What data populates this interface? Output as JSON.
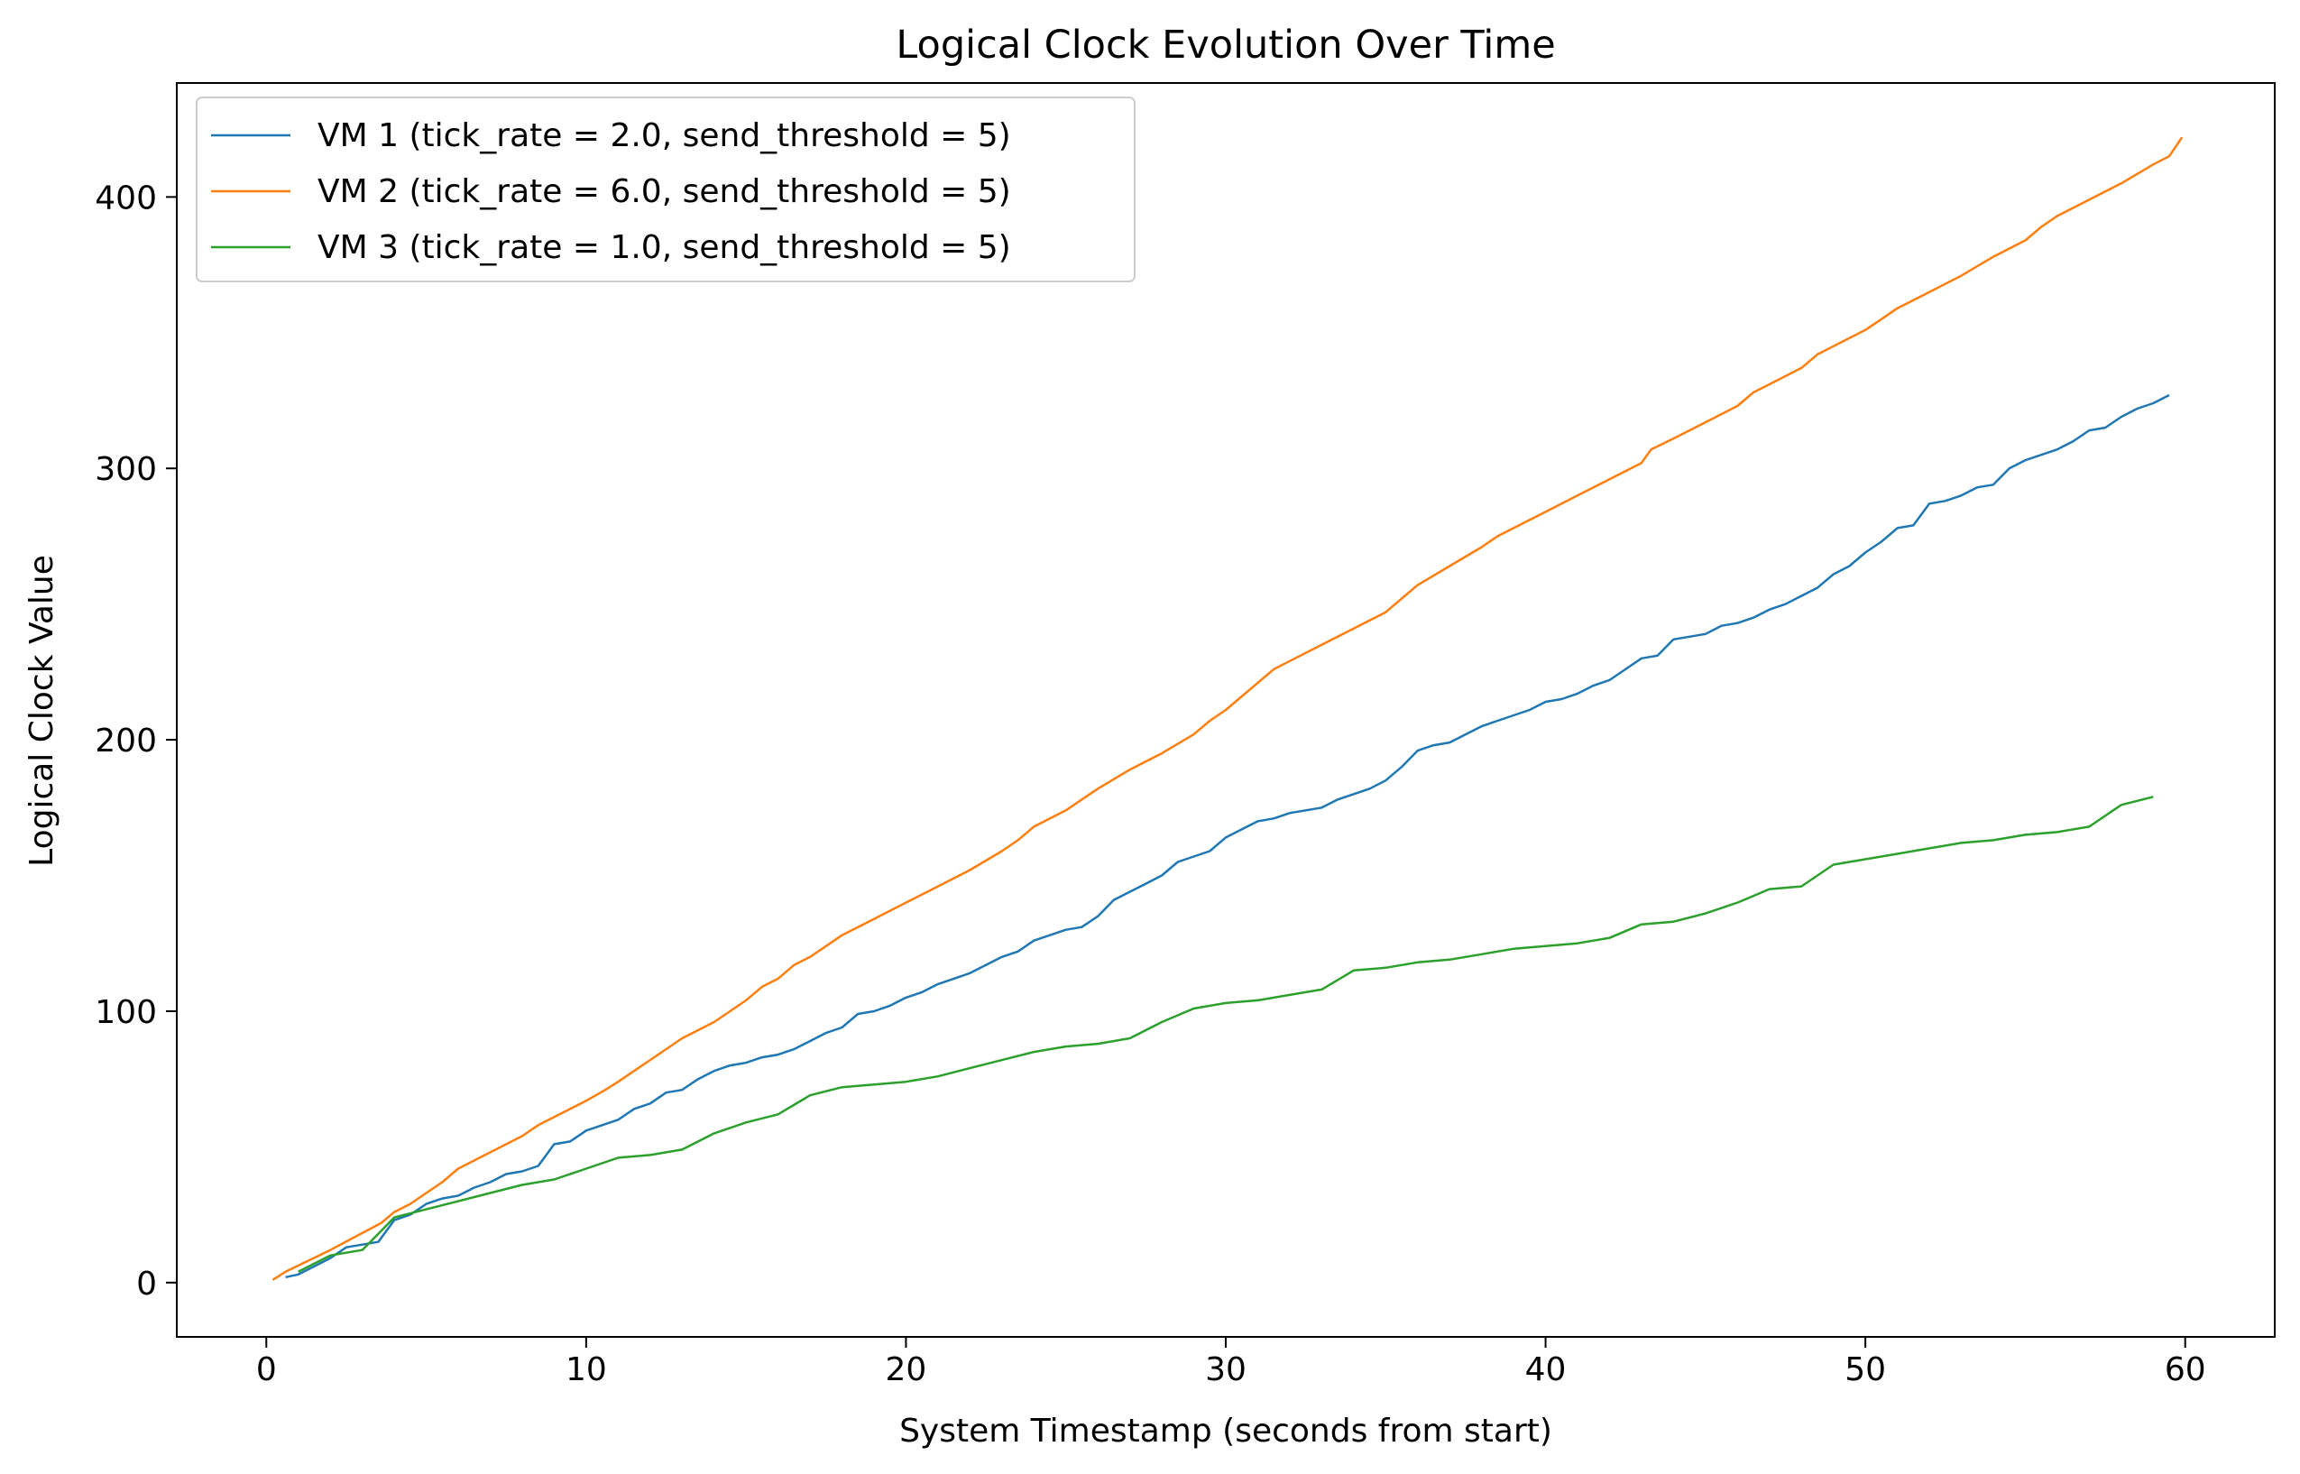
{
  "chart_data": {
    "type": "line",
    "title": "Logical Clock Evolution Over Time",
    "xlabel": "System Timestamp (seconds from start)",
    "ylabel": "Logical Clock Value",
    "xlim": [
      -2.8,
      62.8
    ],
    "ylim": [
      -20,
      442
    ],
    "xticks": [
      0,
      10,
      20,
      30,
      40,
      50,
      60
    ],
    "yticks": [
      0,
      100,
      200,
      300,
      400
    ],
    "grid": false,
    "legend_position": "top-left",
    "series": [
      {
        "name": "VM 1 (tick_rate = 2.0, send_threshold = 5)",
        "color": "#1f77b4",
        "points": [
          [
            0.6,
            2
          ],
          [
            1.0,
            3
          ],
          [
            1.5,
            6
          ],
          [
            2.0,
            9
          ],
          [
            2.5,
            13
          ],
          [
            3.0,
            14
          ],
          [
            3.5,
            15
          ],
          [
            4.0,
            23
          ],
          [
            4.5,
            25
          ],
          [
            5.0,
            29
          ],
          [
            5.5,
            31
          ],
          [
            6.0,
            32
          ],
          [
            6.5,
            35
          ],
          [
            7.0,
            37
          ],
          [
            7.5,
            40
          ],
          [
            8.0,
            41
          ],
          [
            8.5,
            43
          ],
          [
            9.0,
            51
          ],
          [
            9.5,
            52
          ],
          [
            10.0,
            56
          ],
          [
            10.5,
            58
          ],
          [
            11.0,
            60
          ],
          [
            11.5,
            64
          ],
          [
            12.0,
            66
          ],
          [
            12.5,
            70
          ],
          [
            13.0,
            71
          ],
          [
            13.5,
            75
          ],
          [
            14.0,
            78
          ],
          [
            14.5,
            80
          ],
          [
            15.0,
            81
          ],
          [
            15.5,
            83
          ],
          [
            16.0,
            84
          ],
          [
            16.5,
            86
          ],
          [
            17.0,
            89
          ],
          [
            17.5,
            92
          ],
          [
            18.0,
            94
          ],
          [
            18.5,
            99
          ],
          [
            19.0,
            100
          ],
          [
            19.5,
            102
          ],
          [
            20.0,
            105
          ],
          [
            20.5,
            107
          ],
          [
            21.0,
            110
          ],
          [
            21.5,
            112
          ],
          [
            22.0,
            114
          ],
          [
            22.5,
            117
          ],
          [
            23.0,
            120
          ],
          [
            23.5,
            122
          ],
          [
            24.0,
            126
          ],
          [
            24.5,
            128
          ],
          [
            25.0,
            130
          ],
          [
            25.5,
            131
          ],
          [
            26.0,
            135
          ],
          [
            26.5,
            141
          ],
          [
            27.0,
            144
          ],
          [
            27.5,
            147
          ],
          [
            28.0,
            150
          ],
          [
            28.5,
            155
          ],
          [
            29.0,
            157
          ],
          [
            29.5,
            159
          ],
          [
            30.0,
            164
          ],
          [
            30.5,
            167
          ],
          [
            31.0,
            170
          ],
          [
            31.5,
            171
          ],
          [
            32.0,
            173
          ],
          [
            32.5,
            174
          ],
          [
            33.0,
            175
          ],
          [
            33.5,
            178
          ],
          [
            34.0,
            180
          ],
          [
            34.5,
            182
          ],
          [
            35.0,
            185
          ],
          [
            35.5,
            190
          ],
          [
            36.0,
            196
          ],
          [
            36.5,
            198
          ],
          [
            37.0,
            199
          ],
          [
            37.5,
            202
          ],
          [
            38.0,
            205
          ],
          [
            38.5,
            207
          ],
          [
            39.0,
            209
          ],
          [
            39.5,
            211
          ],
          [
            40.0,
            214
          ],
          [
            40.5,
            215
          ],
          [
            41.0,
            217
          ],
          [
            41.5,
            220
          ],
          [
            42.0,
            222
          ],
          [
            42.5,
            226
          ],
          [
            43.0,
            230
          ],
          [
            43.5,
            231
          ],
          [
            44.0,
            237
          ],
          [
            44.5,
            238
          ],
          [
            45.0,
            239
          ],
          [
            45.5,
            242
          ],
          [
            46.0,
            243
          ],
          [
            46.5,
            245
          ],
          [
            47.0,
            248
          ],
          [
            47.5,
            250
          ],
          [
            48.0,
            253
          ],
          [
            48.5,
            256
          ],
          [
            49.0,
            261
          ],
          [
            49.5,
            264
          ],
          [
            50.0,
            269
          ],
          [
            50.5,
            273
          ],
          [
            51.0,
            278
          ],
          [
            51.5,
            279
          ],
          [
            52.0,
            287
          ],
          [
            52.5,
            288
          ],
          [
            53.0,
            290
          ],
          [
            53.5,
            293
          ],
          [
            54.0,
            294
          ],
          [
            54.5,
            300
          ],
          [
            55.0,
            303
          ],
          [
            55.5,
            305
          ],
          [
            56.0,
            307
          ],
          [
            56.5,
            310
          ],
          [
            57.0,
            314
          ],
          [
            57.5,
            315
          ],
          [
            58.0,
            319
          ],
          [
            58.5,
            322
          ],
          [
            59.0,
            324
          ],
          [
            59.5,
            327
          ]
        ]
      },
      {
        "name": "VM 2 (tick_rate = 6.0, send_threshold = 5)",
        "color": "#ff7f0e",
        "points": [
          [
            0.2,
            1
          ],
          [
            0.6,
            4
          ],
          [
            2.0,
            12
          ],
          [
            3.6,
            22
          ],
          [
            4.0,
            26
          ],
          [
            4.5,
            29
          ],
          [
            5.0,
            33
          ],
          [
            5.5,
            37
          ],
          [
            6.0,
            42
          ],
          [
            7.0,
            48
          ],
          [
            8.0,
            54
          ],
          [
            8.5,
            58
          ],
          [
            9.0,
            61
          ],
          [
            10.0,
            67
          ],
          [
            10.6,
            71
          ],
          [
            11.0,
            74
          ],
          [
            11.5,
            78
          ],
          [
            12.0,
            82
          ],
          [
            12.5,
            86
          ],
          [
            13.0,
            90
          ],
          [
            14.0,
            96
          ],
          [
            14.5,
            100
          ],
          [
            15.0,
            104
          ],
          [
            15.5,
            109
          ],
          [
            16.0,
            112
          ],
          [
            16.5,
            117
          ],
          [
            17.0,
            120
          ],
          [
            17.5,
            124
          ],
          [
            18.0,
            128
          ],
          [
            19.0,
            134
          ],
          [
            20.0,
            140
          ],
          [
            21.0,
            146
          ],
          [
            22.0,
            152
          ],
          [
            23.0,
            159
          ],
          [
            23.5,
            163
          ],
          [
            24.0,
            168
          ],
          [
            25.0,
            174
          ],
          [
            25.5,
            178
          ],
          [
            26.0,
            182
          ],
          [
            27.0,
            189
          ],
          [
            28.0,
            195
          ],
          [
            29.0,
            202
          ],
          [
            29.5,
            207
          ],
          [
            30.0,
            211
          ],
          [
            30.5,
            216
          ],
          [
            31.0,
            221
          ],
          [
            31.5,
            226
          ],
          [
            32.0,
            229
          ],
          [
            33.0,
            235
          ],
          [
            34.0,
            241
          ],
          [
            35.0,
            247
          ],
          [
            35.5,
            252
          ],
          [
            36.0,
            257
          ],
          [
            37.0,
            264
          ],
          [
            38.0,
            271
          ],
          [
            38.5,
            275
          ],
          [
            39.0,
            278
          ],
          [
            40.0,
            284
          ],
          [
            41.0,
            290
          ],
          [
            42.0,
            296
          ],
          [
            43.0,
            302
          ],
          [
            43.3,
            307
          ],
          [
            44.0,
            311
          ],
          [
            45.0,
            317
          ],
          [
            46.0,
            323
          ],
          [
            46.5,
            328
          ],
          [
            47.0,
            331
          ],
          [
            48.0,
            337
          ],
          [
            48.5,
            342
          ],
          [
            49.0,
            345
          ],
          [
            50.0,
            351
          ],
          [
            50.5,
            355
          ],
          [
            51.0,
            359
          ],
          [
            52.0,
            365
          ],
          [
            53.0,
            371
          ],
          [
            54.0,
            378
          ],
          [
            55.0,
            384
          ],
          [
            55.5,
            389
          ],
          [
            56.0,
            393
          ],
          [
            57.0,
            399
          ],
          [
            58.0,
            405
          ],
          [
            59.0,
            412
          ],
          [
            59.5,
            415
          ],
          [
            59.9,
            422
          ]
        ]
      },
      {
        "name": "VM 3 (tick_rate = 1.0, send_threshold = 5)",
        "color": "#2ca02c",
        "points": [
          [
            1.0,
            4
          ],
          [
            2.0,
            10
          ],
          [
            2.5,
            11
          ],
          [
            3.0,
            12
          ],
          [
            3.5,
            18
          ],
          [
            4.0,
            24
          ],
          [
            5.0,
            27
          ],
          [
            6.0,
            30
          ],
          [
            7.0,
            33
          ],
          [
            8.0,
            36
          ],
          [
            9.0,
            38
          ],
          [
            10.0,
            42
          ],
          [
            11.0,
            46
          ],
          [
            12.0,
            47
          ],
          [
            13.0,
            49
          ],
          [
            14.0,
            55
          ],
          [
            15.0,
            59
          ],
          [
            16.0,
            62
          ],
          [
            17.0,
            69
          ],
          [
            18.0,
            72
          ],
          [
            19.0,
            73
          ],
          [
            20.0,
            74
          ],
          [
            21.0,
            76
          ],
          [
            22.0,
            79
          ],
          [
            23.0,
            82
          ],
          [
            24.0,
            85
          ],
          [
            25.0,
            87
          ],
          [
            26.0,
            88
          ],
          [
            27.0,
            90
          ],
          [
            28.0,
            96
          ],
          [
            29.0,
            101
          ],
          [
            30.0,
            103
          ],
          [
            31.0,
            104
          ],
          [
            32.0,
            106
          ],
          [
            33.0,
            108
          ],
          [
            34.0,
            115
          ],
          [
            35.0,
            116
          ],
          [
            36.0,
            118
          ],
          [
            37.0,
            119
          ],
          [
            38.0,
            121
          ],
          [
            39.0,
            123
          ],
          [
            40.0,
            124
          ],
          [
            41.0,
            125
          ],
          [
            42.0,
            127
          ],
          [
            43.0,
            132
          ],
          [
            44.0,
            133
          ],
          [
            45.0,
            136
          ],
          [
            46.0,
            140
          ],
          [
            47.0,
            145
          ],
          [
            48.0,
            146
          ],
          [
            49.0,
            154
          ],
          [
            50.0,
            156
          ],
          [
            51.0,
            158
          ],
          [
            52.0,
            160
          ],
          [
            53.0,
            162
          ],
          [
            54.0,
            163
          ],
          [
            55.0,
            165
          ],
          [
            56.0,
            166
          ],
          [
            57.0,
            168
          ],
          [
            58.0,
            176
          ],
          [
            59.0,
            179
          ]
        ]
      }
    ]
  }
}
